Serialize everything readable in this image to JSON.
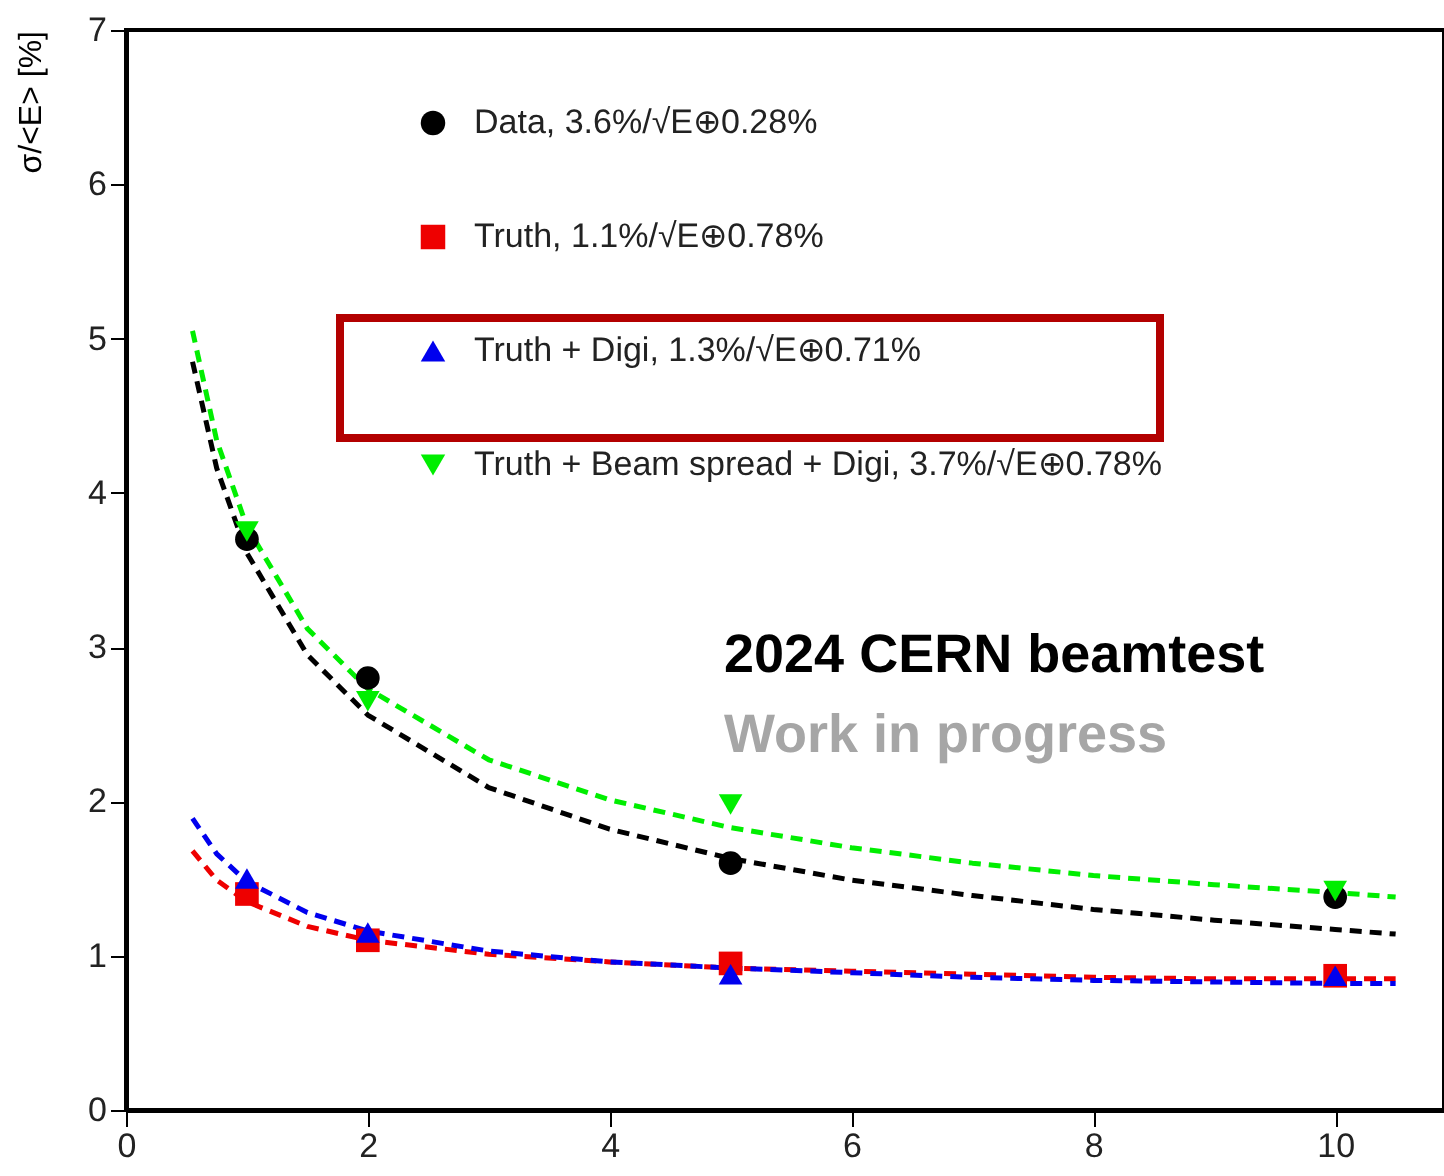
{
  "chart_data": {
    "type": "scatter",
    "ylabel": "σ/<E> [%]",
    "xlim": [
      0,
      10.9
    ],
    "xticks": [
      0,
      2,
      4,
      6,
      8,
      10
    ],
    "ylim": [
      0,
      7
    ],
    "yticks": [
      0,
      1,
      2,
      3,
      4,
      5,
      6,
      7
    ],
    "grid": false,
    "legend": "top",
    "annotations": [
      "2024 CERN beamtest",
      "Work in progress"
    ],
    "series": [
      {
        "type": "line",
        "line_style": "dashed",
        "color": "#000000",
        "x": [
          0.55,
          0.75,
          1,
          1.5,
          2,
          3,
          4,
          5,
          6,
          7,
          8,
          9,
          10,
          10.5
        ],
        "values": [
          4.85,
          4.16,
          3.61,
          2.95,
          2.56,
          2.09,
          1.82,
          1.63,
          1.49,
          1.39,
          1.3,
          1.23,
          1.17,
          1.14
        ]
      },
      {
        "type": "line",
        "line_style": "dashed",
        "color": "#00ee00",
        "x": [
          0.55,
          0.75,
          1,
          1.5,
          2,
          3,
          4,
          5,
          6,
          7,
          8,
          9,
          10,
          10.5
        ],
        "values": [
          5.05,
          4.34,
          3.78,
          3.12,
          2.73,
          2.27,
          2.01,
          1.83,
          1.7,
          1.6,
          1.52,
          1.46,
          1.41,
          1.38
        ]
      },
      {
        "type": "line",
        "line_style": "dashed",
        "color": "#ee0000",
        "x": [
          0.55,
          0.75,
          1,
          1.5,
          2,
          3,
          4,
          5,
          6,
          7,
          8,
          9,
          10,
          10.5
        ],
        "values": [
          1.68,
          1.49,
          1.35,
          1.19,
          1.1,
          1.01,
          0.96,
          0.92,
          0.9,
          0.88,
          0.86,
          0.85,
          0.85,
          0.85
        ]
      },
      {
        "type": "line",
        "line_style": "dashed",
        "color": "#0000ee",
        "x": [
          0.55,
          0.75,
          1,
          1.5,
          2,
          3,
          4,
          5,
          6,
          7,
          8,
          9,
          10,
          10.5
        ],
        "values": [
          1.89,
          1.66,
          1.48,
          1.28,
          1.16,
          1.03,
          0.96,
          0.92,
          0.89,
          0.86,
          0.84,
          0.83,
          0.82,
          0.82
        ]
      },
      {
        "name": "Data, 3.6%/√E⊕0.28%",
        "color": "#000000",
        "marker": "circle",
        "x": [
          1,
          2,
          5,
          10
        ],
        "values": [
          3.7,
          2.8,
          1.6,
          1.38
        ]
      },
      {
        "name": "Truth, 1.1%/√E⊕0.78%",
        "color": "#ee0000",
        "marker": "square",
        "x": [
          1,
          2,
          5,
          10
        ],
        "values": [
          1.4,
          1.1,
          0.95,
          0.87
        ]
      },
      {
        "name": "Truth + Digi, 1.3%/√E⊕0.71%",
        "color": "#0000ee",
        "marker": "triangle",
        "x": [
          1,
          2,
          5,
          10
        ],
        "values": [
          1.5,
          1.15,
          0.88,
          0.87
        ]
      },
      {
        "name": "Truth + Beam spread + Digi, 3.7%/√E⊕0.78%",
        "color": "#00ee00",
        "marker": "triangle-down",
        "x": [
          1,
          2,
          5,
          10
        ],
        "values": [
          3.75,
          2.65,
          1.98,
          1.42
        ]
      }
    ]
  }
}
